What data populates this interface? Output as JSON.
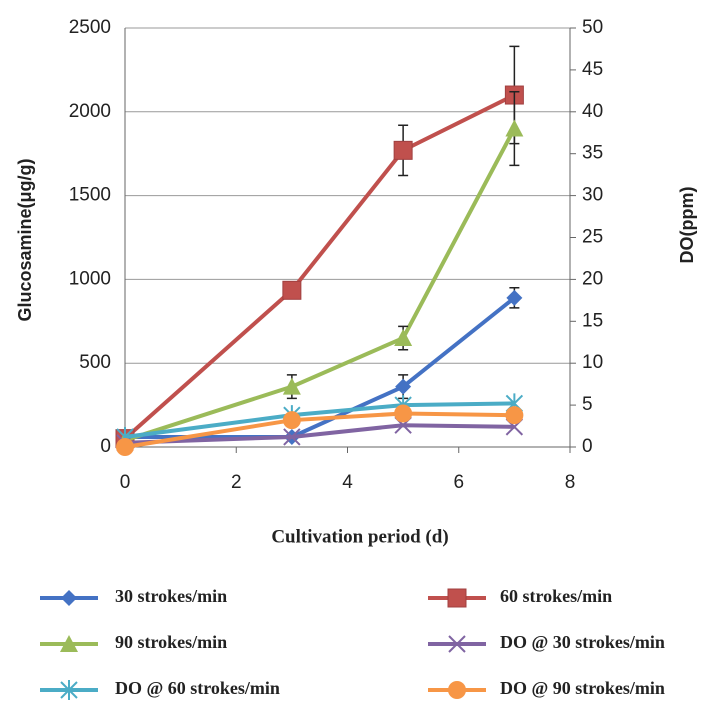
{
  "chart_data": {
    "type": "line",
    "x_label": "Cultivation period (d)",
    "y_label": "Glucosamine(μg/g)",
    "y2_label": "DO(ppm)",
    "xlim": [
      0,
      8
    ],
    "xticks": [
      0,
      2,
      4,
      6,
      8
    ],
    "ylim": [
      0,
      2500
    ],
    "yticks": [
      0,
      500,
      1000,
      1500,
      2000,
      2500
    ],
    "y2lim": [
      0,
      50
    ],
    "y2ticks": [
      0,
      5,
      10,
      15,
      20,
      25,
      30,
      35,
      40,
      45,
      50
    ],
    "grid": true,
    "x": [
      0,
      3,
      5,
      7
    ],
    "series": [
      {
        "name": "30 strokes/min",
        "color": "#4472c4",
        "marker": "diamond",
        "values": [
          60,
          60,
          360,
          890
        ],
        "errors": [
          null,
          null,
          70,
          60
        ]
      },
      {
        "name": "60 strokes/min",
        "color": "#c0504d",
        "marker": "square",
        "values": [
          50,
          935,
          1770,
          2100
        ],
        "errors": [
          null,
          null,
          150,
          290
        ]
      },
      {
        "name": "90 strokes/min",
        "color": "#9bbb59",
        "marker": "triangle",
        "values": [
          40,
          360,
          650,
          1900
        ],
        "errors": [
          null,
          70,
          70,
          220
        ]
      },
      {
        "name": "DO @ 30 strokes/min",
        "color": "#8064a2",
        "marker": "x",
        "axis": "y2",
        "values": [
          0.5,
          1.2,
          2.6,
          2.4
        ]
      },
      {
        "name": "DO @ 60 strokes/min",
        "color": "#4bacc6",
        "marker": "star",
        "axis": "y2",
        "values": [
          1.2,
          3.8,
          5,
          5.2
        ]
      },
      {
        "name": "DO @ 90 strokes/min",
        "color": "#f79646",
        "marker": "circle",
        "axis": "y2",
        "values": [
          0,
          3.2,
          4,
          3.8
        ]
      }
    ]
  }
}
